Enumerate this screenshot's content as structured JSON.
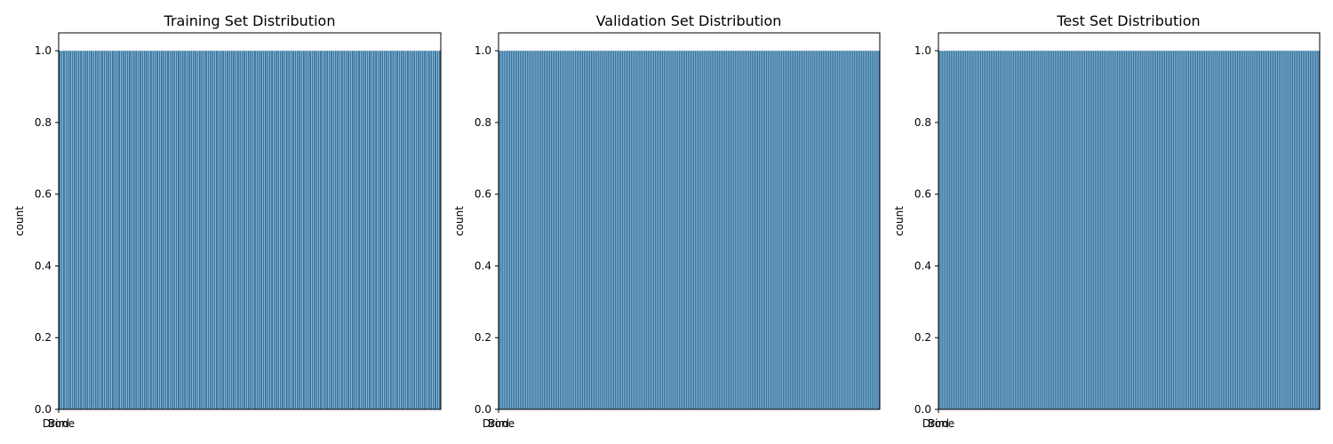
{
  "chart_data": [
    {
      "type": "bar",
      "title": "Training Set Distribution",
      "xlabel": "",
      "ylabel": "count",
      "ylim": [
        0,
        1.05
      ],
      "yticks": [
        "0.0",
        "0.2",
        "0.4",
        "0.6",
        "0.8",
        "1.0"
      ],
      "x_tick_labels": [
        "Bird",
        "Drone"
      ],
      "bar_count": 180,
      "values": 1.0,
      "grid": false,
      "color": "#3274a1"
    },
    {
      "type": "bar",
      "title": "Validation Set Distribution",
      "xlabel": "",
      "ylabel": "count",
      "ylim": [
        0,
        1.05
      ],
      "yticks": [
        "0.0",
        "0.2",
        "0.4",
        "0.6",
        "0.8",
        "1.0"
      ],
      "x_tick_labels": [
        "Bird",
        "Drone"
      ],
      "bar_count": 220,
      "values": 1.0,
      "grid": false,
      "color": "#3274a1"
    },
    {
      "type": "bar",
      "title": "Test Set Distribution",
      "xlabel": "",
      "ylabel": "count",
      "ylim": [
        0,
        1.05
      ],
      "yticks": [
        "0.0",
        "0.2",
        "0.4",
        "0.6",
        "0.8",
        "1.0"
      ],
      "x_tick_labels": [
        "Bird",
        "Drone"
      ],
      "bar_count": 220,
      "values": 1.0,
      "grid": false,
      "color": "#3274a1"
    }
  ]
}
